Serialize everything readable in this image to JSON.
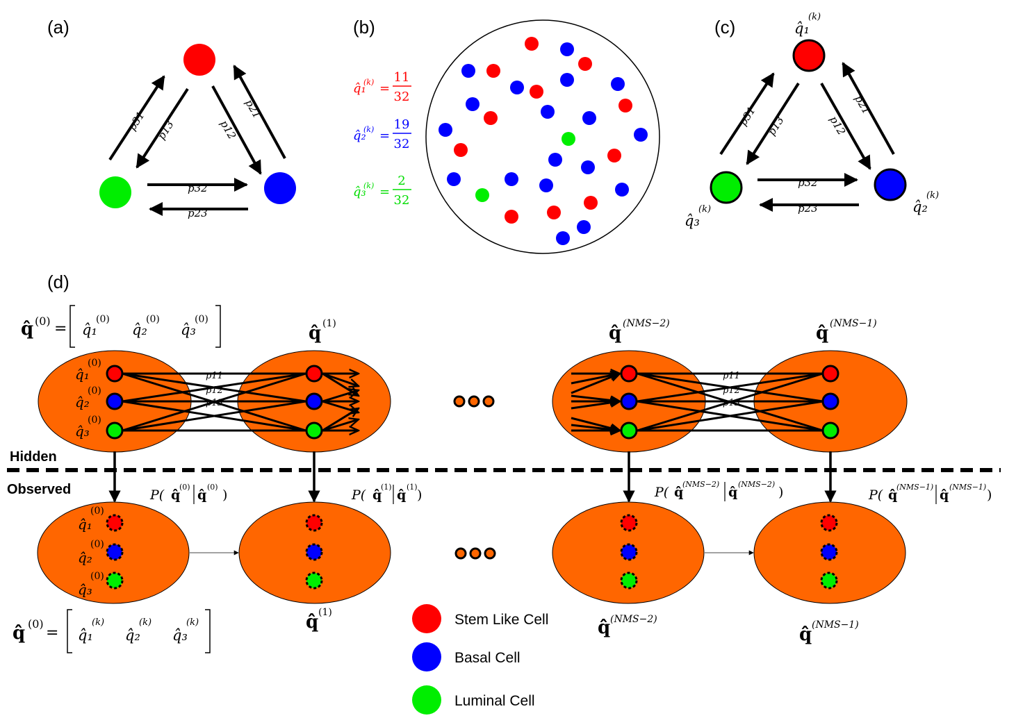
{
  "colors": {
    "stem": "#ff0000",
    "basal": "#0000ff",
    "luminal": "#00ee00",
    "ellipse": "#ff6600",
    "ink": "#000000"
  },
  "panels": {
    "a": {
      "label": "(a)",
      "transitions": [
        "p31",
        "p13",
        "p12",
        "p21",
        "p32",
        "p23"
      ]
    },
    "b": {
      "label": "(b)",
      "q1": {
        "symbol": "q̂₁",
        "sup": "(k)",
        "eq": "=",
        "num": "11",
        "den": "32"
      },
      "q2": {
        "symbol": "q̂₂",
        "sup": "(k)",
        "eq": "=",
        "num": "19",
        "den": "32"
      },
      "q3": {
        "symbol": "q̂₃",
        "sup": "(k)",
        "eq": "=",
        "num": "2",
        "den": "32"
      },
      "cells": {
        "stem": 11,
        "basal": 19,
        "luminal": 2
      }
    },
    "c": {
      "label": "(c)",
      "node_labels": {
        "q1": "q̂₁",
        "q2": "q̂₂",
        "q3": "q̂₃",
        "sup": "(k)"
      },
      "transitions": [
        "p31",
        "p13",
        "p12",
        "p21",
        "p32",
        "p23"
      ]
    },
    "d": {
      "label": "(d)",
      "hidden_label": "Hidden",
      "observed_label": "Observed",
      "q0_vector": {
        "lhs": "q̂",
        "sup": "(0)",
        "eq": "=",
        "entries": [
          "q̂₁",
          "q̂₂",
          "q̂₃"
        ],
        "entry_sup": "(0)"
      },
      "qobs_vector": {
        "lhs": "q̂̂",
        "sup": "(0)",
        "eq": "=",
        "entries": [
          "q̂̂₁",
          "q̂̂₂",
          "q̂̂₃"
        ],
        "entry_sup": "(k)"
      },
      "hidden_titles": [
        "q̂",
        "q̂",
        "q̂",
        "q̂"
      ],
      "hidden_sups": [
        "(1)",
        "(NMS−2)",
        "(NMS−1)"
      ],
      "node_labels": [
        "q̂₁",
        "q̂₂",
        "q̂₃"
      ],
      "node_sup": "(0)",
      "obs_node_labels": [
        "q̂̂₁",
        "q̂̂₂",
        "q̂̂₃"
      ],
      "obs_node_sup": "(0)",
      "transitions": [
        "p11",
        "p12",
        "p13"
      ],
      "emissions": [
        {
          "P": "P(",
          "a": "q̂̂",
          "asup": "(0)",
          "b": "q̂",
          "bsup": "(0)",
          "close": ")"
        },
        {
          "P": "P(",
          "a": "q̂̂",
          "asup": "(1)",
          "b": "q̂",
          "bsup": "(1)",
          "close": ")"
        },
        {
          "P": "P(",
          "a": "q̂̂",
          "asup": "(NMS−2)",
          "b": "q̂",
          "bsup": "(NMS−2)",
          "close": ")"
        },
        {
          "P": "P(",
          "a": "q̂̂",
          "asup": "(NMS−1)",
          "b": "q̂",
          "bsup": "(NMS−1)",
          "close": ")"
        }
      ],
      "obs_titles": [
        {
          "base": "q̂̂",
          "sup": "(1)"
        },
        {
          "base": "q̂̂",
          "sup": "(NMS−2)"
        },
        {
          "base": "q̂̂",
          "sup": "(NMS−1)"
        }
      ]
    }
  },
  "legend": [
    {
      "label": "Stem Like Cell",
      "color": "#ff0000"
    },
    {
      "label": "Basal Cell",
      "color": "#0000ff"
    },
    {
      "label": "Luminal Cell",
      "color": "#00ee00"
    }
  ]
}
